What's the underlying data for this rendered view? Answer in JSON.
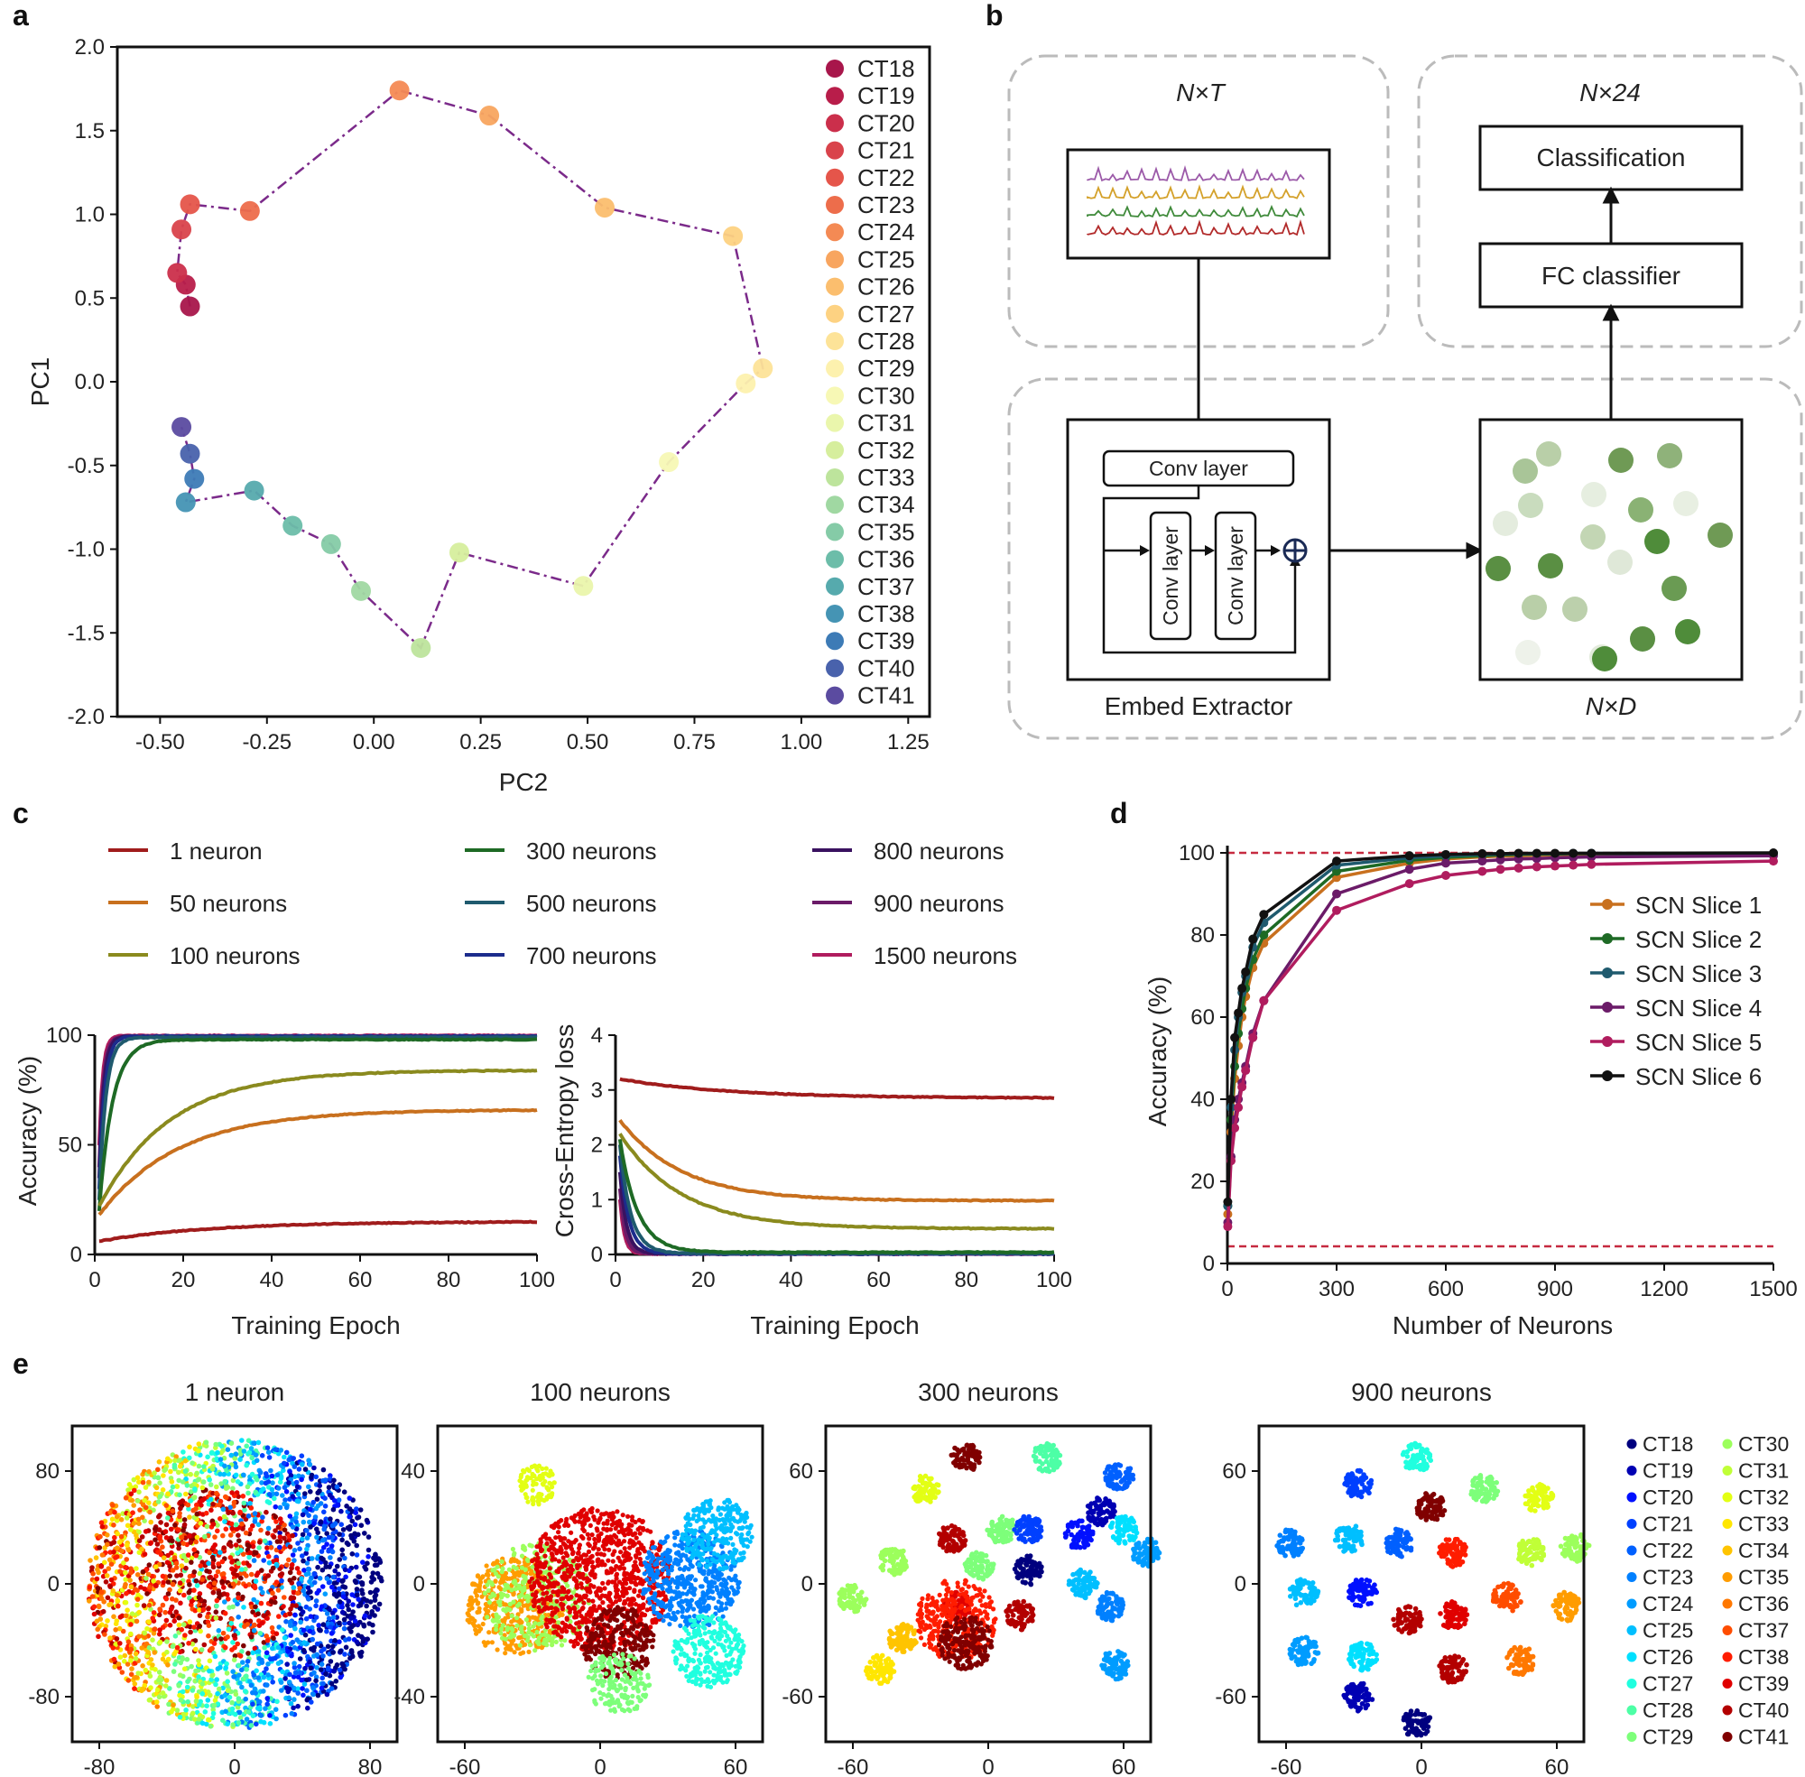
{
  "panel_labels": {
    "a": "a",
    "b": "b",
    "c": "c",
    "d": "d",
    "e": "e"
  },
  "ct_labels": [
    "CT18",
    "CT19",
    "CT20",
    "CT21",
    "CT22",
    "CT23",
    "CT24",
    "CT25",
    "CT26",
    "CT27",
    "CT28",
    "CT29",
    "CT30",
    "CT31",
    "CT32",
    "CT33",
    "CT34",
    "CT35",
    "CT36",
    "CT37",
    "CT38",
    "CT39",
    "CT40",
    "CT41"
  ],
  "colors": {
    "trajectory": "#7b2a8a",
    "a_points": [
      "#a8164b",
      "#b81d4a",
      "#cb2f4b",
      "#d9434b",
      "#e5554a",
      "#ed6d4b",
      "#f48a54",
      "#f8a55f",
      "#fbbe6e",
      "#fdd282",
      "#fde398",
      "#fdf1ae",
      "#f7f8b5",
      "#eaf6ac",
      "#d6ee9d",
      "#bde49c",
      "#a0d8a2",
      "#85cba7",
      "#6cbda9",
      "#56aaad",
      "#4594b4",
      "#3d7bb6",
      "#4962ac",
      "#5b4ba0"
    ],
    "e_points": [
      "#00007f",
      "#0000b3",
      "#0010ff",
      "#0040ff",
      "#0060ff",
      "#0080ff",
      "#009cff",
      "#00bfff",
      "#00e0ff",
      "#20ffdf",
      "#4dffa6",
      "#7dff7a",
      "#9cff5c",
      "#c0ff37",
      "#e3ff14",
      "#ffe600",
      "#ffc400",
      "#ff9c00",
      "#ff7800",
      "#ff4d00",
      "#ff1d00",
      "#e00000",
      "#b30000",
      "#800000"
    ],
    "slices": [
      "#c8701e",
      "#1e6a25",
      "#1f5a6e",
      "#6b1b68",
      "#b01c5e",
      "#111111"
    ]
  },
  "chart_data": [
    {
      "panel": "a",
      "type": "scatter",
      "title": "",
      "xlabel": "PC2",
      "ylabel": "PC1",
      "xlim": [
        -0.6,
        1.3
      ],
      "ylim": [
        -2.0,
        2.0
      ],
      "xticks": [
        "-0.50",
        "-0.25",
        "0.00",
        "0.25",
        "0.50",
        "0.75",
        "1.00",
        "1.25"
      ],
      "yticks": [
        "2.0",
        "1.5",
        "1.0",
        "0.5",
        "0.0",
        "-0.5",
        "-1.0",
        "-1.5",
        "-2.0"
      ],
      "legend": [
        "CT18",
        "CT19",
        "CT20",
        "CT21",
        "CT22",
        "CT23",
        "CT24",
        "CT25",
        "CT26",
        "CT27",
        "CT28",
        "CT29",
        "CT30",
        "CT31",
        "CT32",
        "CT33",
        "CT34",
        "CT35",
        "CT36",
        "CT37",
        "CT38",
        "CT39",
        "CT40",
        "CT41"
      ],
      "x": [
        -0.43,
        -0.44,
        -0.46,
        -0.45,
        -0.43,
        -0.29,
        0.06,
        0.27,
        0.54,
        0.84,
        0.91,
        0.87,
        0.69,
        0.49,
        0.2,
        0.11,
        -0.03,
        -0.1,
        -0.19,
        -0.28,
        -0.44,
        -0.42,
        -0.43,
        -0.45
      ],
      "y": [
        0.45,
        0.58,
        0.65,
        0.91,
        1.06,
        1.02,
        1.74,
        1.59,
        1.04,
        0.87,
        0.08,
        -0.01,
        -0.48,
        -1.22,
        -1.02,
        -1.59,
        -1.25,
        -0.97,
        -0.86,
        -0.65,
        -0.72,
        -0.58,
        -0.43,
        -0.27
      ]
    },
    {
      "panel": "c-left",
      "type": "line",
      "xlabel": "Training Epoch",
      "ylabel": "Accuracy (%)",
      "xlim": [
        0,
        100
      ],
      "ylim": [
        0,
        100
      ],
      "xticks": [
        "0",
        "20",
        "40",
        "60",
        "80",
        "100"
      ],
      "yticks": [
        "100",
        "50",
        "0"
      ],
      "legend": [
        "1 neuron",
        "50 neurons",
        "100 neurons",
        "300 neurons",
        "500 neurons",
        "700 neurons",
        "800 neurons",
        "900 neurons",
        "1500 neurons"
      ],
      "series": [
        {
          "name": "1 neuron",
          "color": "#a01c1c",
          "start": 6,
          "end": 15,
          "tau": 25
        },
        {
          "name": "50 neurons",
          "color": "#c8701e",
          "start": 18,
          "end": 66,
          "tau": 18
        },
        {
          "name": "100 neurons",
          "color": "#8a8a1e",
          "start": 22,
          "end": 84,
          "tau": 16
        },
        {
          "name": "300 neurons",
          "color": "#1e6a25",
          "start": 20,
          "end": 98,
          "tau": 3
        },
        {
          "name": "500 neurons",
          "color": "#1f5a6e",
          "start": 25,
          "end": 99,
          "tau": 1.5
        },
        {
          "name": "700 neurons",
          "color": "#1c2c8c",
          "start": 30,
          "end": 99.5,
          "tau": 1.2
        },
        {
          "name": "800 neurons",
          "color": "#3a1260",
          "start": 35,
          "end": 99.5,
          "tau": 1
        },
        {
          "name": "900 neurons",
          "color": "#6b1b68",
          "start": 40,
          "end": 99.5,
          "tau": 0.9
        },
        {
          "name": "1500 neurons",
          "color": "#b01c5e",
          "start": 50,
          "end": 99.8,
          "tau": 0.8
        }
      ]
    },
    {
      "panel": "c-right",
      "type": "line",
      "xlabel": "Training Epoch",
      "ylabel": "Cross-Entropy loss",
      "xlim": [
        0,
        100
      ],
      "ylim": [
        0,
        4
      ],
      "xticks": [
        "0",
        "20",
        "40",
        "60",
        "80",
        "100"
      ],
      "yticks": [
        "4",
        "3",
        "2",
        "1",
        "0"
      ],
      "series": [
        {
          "name": "1 neuron",
          "color": "#a01c1c",
          "start": 3.2,
          "end": 2.85,
          "tau": 25
        },
        {
          "name": "50 neurons",
          "color": "#c8701e",
          "start": 2.45,
          "end": 0.98,
          "tau": 14
        },
        {
          "name": "100 neurons",
          "color": "#8a8a1e",
          "start": 2.2,
          "end": 0.47,
          "tau": 14
        },
        {
          "name": "300 neurons",
          "color": "#1e6a25",
          "start": 2.1,
          "end": 0.04,
          "tau": 4
        },
        {
          "name": "500 neurons",
          "color": "#1f5a6e",
          "start": 2.0,
          "end": 0.02,
          "tau": 2.5
        },
        {
          "name": "700 neurons",
          "color": "#1c2c8c",
          "start": 1.8,
          "end": 0.01,
          "tau": 2
        },
        {
          "name": "800 neurons",
          "color": "#3a1260",
          "start": 1.5,
          "end": 0.01,
          "tau": 1.5
        },
        {
          "name": "900 neurons",
          "color": "#6b1b68",
          "start": 1.2,
          "end": 0.01,
          "tau": 1.2
        },
        {
          "name": "1500 neurons",
          "color": "#b01c5e",
          "start": 1.0,
          "end": 0.01,
          "tau": 1
        }
      ]
    },
    {
      "panel": "d",
      "type": "line",
      "xlabel": "Number of Neurons",
      "ylabel": "Accuracy (%)",
      "xlim": [
        0,
        1500
      ],
      "ylim": [
        0,
        100
      ],
      "xticks": [
        "0",
        "300",
        "600",
        "900",
        "1200",
        "1500"
      ],
      "yticks": [
        "100",
        "80",
        "60",
        "40",
        "20",
        "0"
      ],
      "reference_lines": [
        100,
        4.17
      ],
      "x": [
        1,
        10,
        20,
        30,
        40,
        50,
        70,
        100,
        300,
        500,
        600,
        700,
        750,
        800,
        850,
        900,
        950,
        1000,
        1500
      ],
      "series": [
        {
          "name": "SCN Slice 1",
          "values": [
            12,
            32,
            45,
            53,
            60,
            65,
            72,
            78,
            94,
            97.5,
            98.5,
            99,
            99.2,
            99.3,
            99.4,
            99.5,
            99.6,
            99.7,
            99.9
          ]
        },
        {
          "name": "SCN Slice 2",
          "values": [
            14,
            35,
            48,
            56,
            62,
            67,
            74,
            80,
            95.5,
            98.2,
            98.9,
            99.3,
            99.5,
            99.6,
            99.7,
            99.7,
            99.8,
            99.8,
            99.9
          ]
        },
        {
          "name": "SCN Slice 3",
          "values": [
            14,
            38,
            52,
            60,
            66,
            70,
            77,
            83,
            97,
            98.8,
            99.3,
            99.6,
            99.7,
            99.8,
            99.8,
            99.8,
            99.9,
            99.9,
            99.9
          ]
        },
        {
          "name": "SCN Slice 4",
          "values": [
            10,
            26,
            35,
            40,
            44,
            48,
            56,
            64,
            90,
            96,
            97.5,
            98,
            98.3,
            98.5,
            98.6,
            98.8,
            98.9,
            99,
            99.3
          ]
        },
        {
          "name": "SCN Slice 5",
          "values": [
            9,
            25,
            33,
            38,
            43,
            47,
            55,
            64,
            86,
            92.5,
            94.5,
            95.5,
            96,
            96.3,
            96.6,
            96.8,
            97,
            97.2,
            98
          ]
        },
        {
          "name": "SCN Slice 6",
          "values": [
            15,
            40,
            55,
            61,
            67,
            71,
            79,
            85,
            98,
            99.3,
            99.6,
            99.8,
            99.8,
            99.9,
            99.9,
            99.9,
            99.9,
            99.9,
            100
          ]
        }
      ]
    },
    {
      "panel": "e",
      "type": "scatter",
      "subplots": [
        {
          "title": "1 neuron",
          "xticks": [
            "-80",
            "0",
            "80"
          ],
          "yticks": [
            "80",
            "0",
            "-80"
          ],
          "layout": "disk"
        },
        {
          "title": "100 neurons",
          "xticks": [
            "-60",
            "0",
            "60"
          ],
          "yticks": [
            "40",
            "0",
            "-40"
          ],
          "layout": "blobs"
        },
        {
          "title": "300 neurons",
          "xticks": [
            "-60",
            "0",
            "60"
          ],
          "yticks": [
            "60",
            "0",
            "-60"
          ],
          "layout": "clusters"
        },
        {
          "title": "900 neurons",
          "xticks": [
            "-60",
            "0",
            "60"
          ],
          "yticks": [
            "60",
            "0",
            "-60"
          ],
          "layout": "clusters"
        }
      ],
      "legend": [
        "CT18",
        "CT19",
        "CT20",
        "CT21",
        "CT22",
        "CT23",
        "CT24",
        "CT25",
        "CT26",
        "CT27",
        "CT28",
        "CT29",
        "CT30",
        "CT31",
        "CT32",
        "CT33",
        "CT34",
        "CT35",
        "CT36",
        "CT37",
        "CT38",
        "CT39",
        "CT40",
        "CT41"
      ]
    }
  ],
  "diagram": {
    "input_dim": "N×T",
    "output_dim": "N×24",
    "embed_dim": "N×D",
    "classification": "Classification",
    "fc_classifier": "FC classifier",
    "conv_layer": "Conv layer",
    "embed_extractor": "Embed Extractor",
    "trace_colors": [
      "#9b59a8",
      "#d4a12a",
      "#3f8a3a",
      "#b22a2a"
    ]
  }
}
